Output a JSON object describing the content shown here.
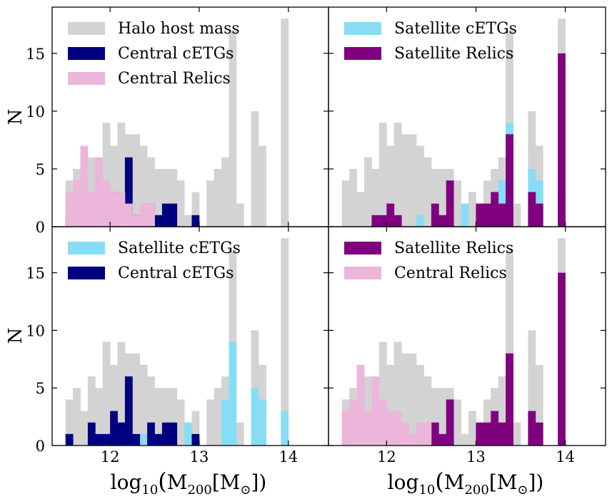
{
  "chart_data": {
    "type": "histogram",
    "bin_edges_start": 11.5,
    "bin_width": 0.0833,
    "bins": 30,
    "xlim": [
      11.35,
      14.45
    ],
    "ylim": [
      0,
      19
    ],
    "xticks": [
      12,
      13,
      14
    ],
    "yticks": [
      0,
      5,
      10,
      15
    ],
    "xtick_labels": [
      "12",
      "13",
      "14"
    ],
    "ytick_labels": [
      "0",
      "5",
      "10",
      "15"
    ],
    "ylabel": "N",
    "xlabel": "log10(M200[M⊙])",
    "xlabel_parts": {
      "log": "log",
      "sub10": "10",
      "lp": "(",
      "m": "M",
      "sub200": "200",
      "br": "[M",
      "sun": "⊙",
      "close": "])"
    },
    "colors": {
      "halo": "#d3d3d3",
      "central_cetgs": "#000080",
      "central_relics": "#ebb6d9",
      "satellite_cetgs": "#87ddf6",
      "satellite_relics": "#800080"
    },
    "series": {
      "halo": [
        4,
        5,
        3,
        6,
        5,
        9,
        7,
        9,
        8,
        8,
        7,
        6,
        5,
        5,
        5,
        4,
        1,
        3,
        0,
        4,
        5,
        6,
        17,
        2,
        0,
        10,
        7,
        0,
        0,
        18
      ],
      "central_cetgs": [
        1,
        0,
        0,
        2,
        1,
        1,
        3,
        2,
        6,
        1,
        0,
        2,
        1,
        2,
        2,
        0,
        0,
        1,
        0,
        0,
        0,
        0,
        0,
        0,
        0,
        0,
        0,
        0,
        0,
        0
      ],
      "central_relics": [
        3,
        4,
        7,
        3,
        6,
        4,
        3,
        3,
        2,
        1,
        2,
        2,
        0,
        0,
        0,
        0,
        0,
        0,
        0,
        0,
        0,
        0,
        0,
        0,
        0,
        0,
        0,
        0,
        0,
        0
      ],
      "satellite_cetgs": [
        0,
        0,
        0,
        0,
        0,
        0,
        0,
        0,
        0,
        0,
        1,
        0,
        0,
        0,
        0,
        0,
        2,
        0,
        0,
        0,
        0,
        4,
        9,
        0,
        0,
        5,
        4,
        0,
        0,
        3
      ],
      "satellite_relics": [
        0,
        0,
        0,
        0,
        1,
        1,
        2,
        1,
        0,
        0,
        0,
        0,
        2,
        1,
        4,
        0,
        0,
        0,
        2,
        2,
        3,
        2,
        8,
        0,
        0,
        3,
        2,
        0,
        0,
        15
      ]
    },
    "panels": [
      {
        "layers": [
          "halo",
          "central_cetgs",
          "central_relics"
        ],
        "legend": [
          "Halo host mass",
          "Central cETGs",
          "Central Relics"
        ],
        "legend_colors": [
          "halo",
          "central_cetgs",
          "central_relics"
        ],
        "legend_position": "top-left"
      },
      {
        "layers": [
          "halo",
          "satellite_cetgs",
          "satellite_relics"
        ],
        "legend": [
          "Satellite cETGs",
          "Satellite Relics"
        ],
        "legend_colors": [
          "satellite_cetgs",
          "satellite_relics"
        ],
        "legend_position": "top-left"
      },
      {
        "layers": [
          "halo",
          "satellite_cetgs",
          "central_cetgs"
        ],
        "legend": [
          "Satellite cETGs",
          "Central cETGs"
        ],
        "legend_colors": [
          "satellite_cetgs",
          "central_cetgs"
        ],
        "legend_position": "top-left"
      },
      {
        "layers": [
          "halo",
          "satellite_relics",
          "central_relics"
        ],
        "legend": [
          "Satellite Relics",
          "Central Relics"
        ],
        "legend_colors": [
          "satellite_relics",
          "central_relics"
        ],
        "legend_position": "top-left"
      }
    ]
  }
}
